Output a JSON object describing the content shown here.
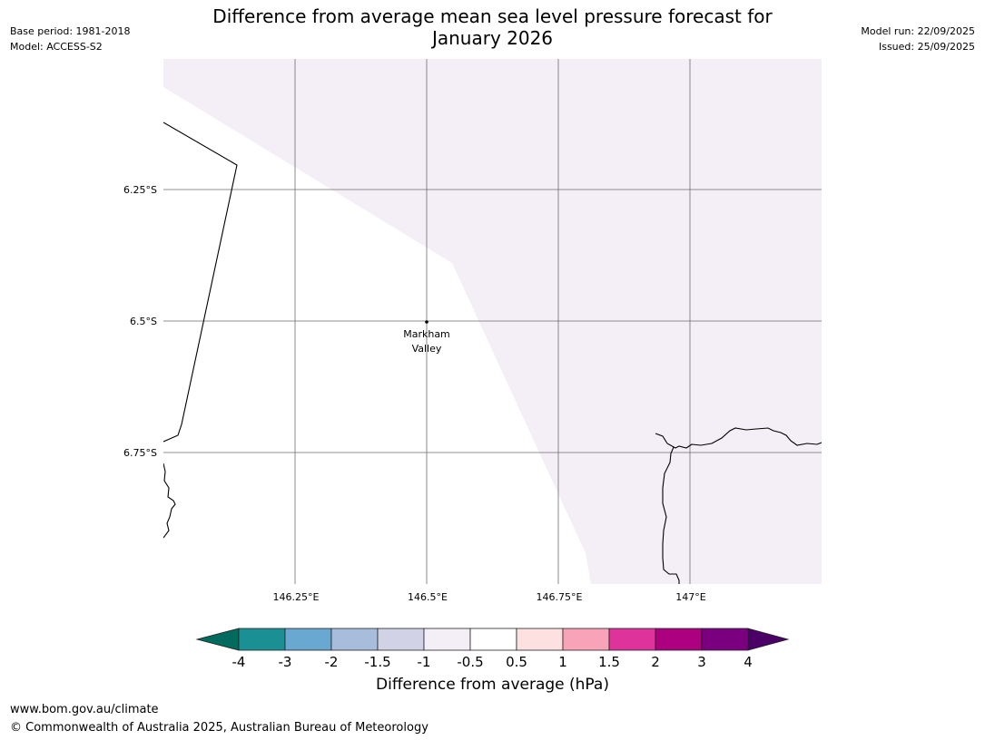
{
  "title": {
    "line1": "Difference from average mean sea level pressure forecast for",
    "line2": "January 2026"
  },
  "meta": {
    "base_period": "Base period: 1981-2018",
    "model": "Model: ACCESS-S2",
    "model_run": "Model run: 22/09/2025",
    "issued": "Issued: 25/09/2025"
  },
  "map": {
    "lat_labels": [
      "6.25°S",
      "6.5°S",
      "6.75°S"
    ],
    "lon_labels": [
      "146.25°E",
      "146.5°E",
      "146.75°E",
      "147°E"
    ],
    "place": {
      "name_line1": "Markham",
      "name_line2": "Valley"
    },
    "shade_color": "#f4eef6"
  },
  "colorbar": {
    "title": "Difference from average (hPa)",
    "ticks": [
      "-4",
      "-3",
      "-2",
      "-1.5",
      "-1",
      "-0.5",
      "0.5",
      "1",
      "1.5",
      "2",
      "3",
      "4"
    ],
    "under_color": "#006b5e",
    "over_color": "#4a0066",
    "colors": [
      "#1a9095",
      "#69a8d1",
      "#a8bcdb",
      "#d2d2e6",
      "#f4eef6",
      "#ffffff",
      "#fde0e0",
      "#f9a3b8",
      "#de339a",
      "#ad0080",
      "#7b0080"
    ]
  },
  "footer": {
    "url": "www.bom.gov.au/climate",
    "copyright": "© Commonwealth of Australia 2025, Australian Bureau of Meteorology"
  }
}
